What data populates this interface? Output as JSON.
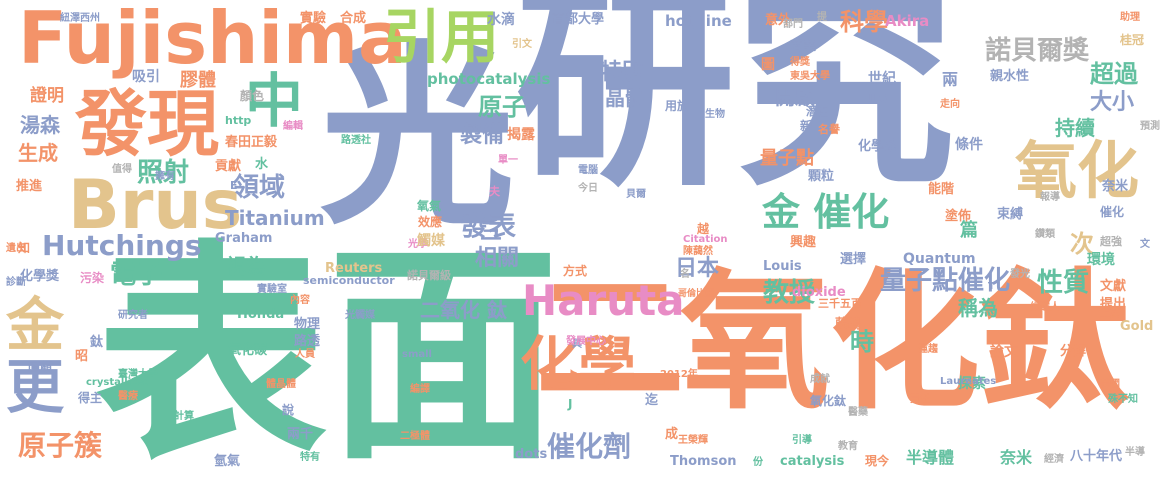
{
  "palette": {
    "blue": "#8c9dc9",
    "green": "#63c0a0",
    "orange": "#f39369",
    "pink": "#e88cc5",
    "tan": "#e3c48d",
    "lime": "#a7d562",
    "gray": "#b3b3b3"
  },
  "words": [
    {
      "text": "研究",
      "color": "blue"
    },
    {
      "text": "光",
      "color": "blue"
    },
    {
      "text": "表面",
      "color": "green"
    },
    {
      "text": "氧化鈦",
      "color": "orange"
    },
    {
      "text": "二",
      "color": "orange"
    },
    {
      "text": "Fujishima",
      "color": "orange"
    },
    {
      "text": "發現",
      "color": "orange"
    },
    {
      "text": "Brus",
      "color": "tan"
    },
    {
      "text": "引用",
      "color": "lime"
    },
    {
      "text": "中",
      "color": "green"
    },
    {
      "text": "氧化",
      "color": "tan"
    },
    {
      "text": "Haruta",
      "color": "pink"
    },
    {
      "text": "化學",
      "color": "orange"
    },
    {
      "text": "金",
      "color": "tan"
    },
    {
      "text": "更",
      "color": "blue"
    },
    {
      "text": "Hutchings",
      "color": "blue"
    },
    {
      "text": "金 催化",
      "color": "green"
    },
    {
      "text": "諾貝爾獎",
      "color": "gray"
    },
    {
      "text": "原子簇",
      "color": "orange"
    },
    {
      "text": "催化劑",
      "color": "blue"
    },
    {
      "text": "量子點催化",
      "color": "blue"
    },
    {
      "text": "性質",
      "color": "green"
    },
    {
      "text": "教授",
      "color": "green"
    },
    {
      "text": "電子",
      "color": "green"
    },
    {
      "text": "照射",
      "color": "green"
    },
    {
      "text": "領域",
      "color": "blue"
    },
    {
      "text": "發表",
      "color": "blue"
    },
    {
      "text": "科學",
      "color": "orange"
    },
    {
      "text": "超過",
      "color": "green"
    },
    {
      "text": "大小",
      "color": "blue"
    },
    {
      "text": "原子",
      "color": "green"
    },
    {
      "text": "特別",
      "color": "blue"
    },
    {
      "text": "晶體",
      "color": "blue"
    },
    {
      "text": "製備",
      "color": "blue"
    },
    {
      "text": "湯森",
      "color": "blue"
    },
    {
      "text": "生成",
      "color": "orange"
    },
    {
      "text": "持續",
      "color": "green"
    },
    {
      "text": "開啟",
      "color": "blue"
    },
    {
      "text": "量子點",
      "color": "orange"
    },
    {
      "text": "日本",
      "color": "blue"
    },
    {
      "text": "相關",
      "color": "blue"
    },
    {
      "text": "三",
      "color": "blue"
    },
    {
      "text": "Titanium",
      "color": "blue"
    },
    {
      "text": "二氧化 鈦",
      "color": "blue"
    },
    {
      "text": "視為",
      "color": "green"
    },
    {
      "text": "稱為",
      "color": "green"
    },
    {
      "text": "次",
      "color": "tan"
    },
    {
      "text": "時",
      "color": "green"
    },
    {
      "text": "膠體",
      "color": "orange"
    },
    {
      "text": "證明",
      "color": "orange"
    },
    {
      "text": "吸引",
      "color": "blue"
    },
    {
      "text": "photocatalysis",
      "color": "green"
    },
    {
      "text": "hot_line",
      "color": "blue"
    },
    {
      "text": "Akira",
      "color": "pink"
    },
    {
      "text": "水滴",
      "color": "blue"
    },
    {
      "text": "首都大學",
      "color": "blue"
    },
    {
      "text": "實驗",
      "color": "orange"
    },
    {
      "text": "合成",
      "color": "orange"
    },
    {
      "text": "紐澤西州",
      "color": "blue"
    },
    {
      "text": "意外",
      "color": "orange"
    },
    {
      "text": "商業",
      "color": "blue"
    },
    {
      "text": "世紀",
      "color": "blue"
    },
    {
      "text": "兩",
      "color": "blue"
    },
    {
      "text": "親水性",
      "color": "blue"
    },
    {
      "text": "UV",
      "color": "blue"
    },
    {
      "text": "條件",
      "color": "blue"
    },
    {
      "text": "能階",
      "color": "orange"
    },
    {
      "text": "塗佈",
      "color": "orange"
    },
    {
      "text": "束縛",
      "color": "blue"
    },
    {
      "text": "催化",
      "color": "blue"
    },
    {
      "text": "篇",
      "color": "green"
    },
    {
      "text": "興趣",
      "color": "orange"
    },
    {
      "text": "選擇",
      "color": "blue"
    },
    {
      "text": "Quantum",
      "color": "blue"
    },
    {
      "text": "Louis",
      "color": "blue"
    },
    {
      "text": "dioxide",
      "color": "pink"
    },
    {
      "text": "環境",
      "color": "green"
    },
    {
      "text": "文獻",
      "color": "orange"
    },
    {
      "text": "提出",
      "color": "orange"
    },
    {
      "text": "Gold",
      "color": "tan"
    },
    {
      "text": "超強",
      "color": "gray"
    },
    {
      "text": "化學系",
      "color": "blue"
    },
    {
      "text": "顆粒",
      "color": "blue"
    },
    {
      "text": "潛在",
      "color": "blue"
    },
    {
      "text": "新",
      "color": "blue"
    },
    {
      "text": "名譽",
      "color": "orange"
    },
    {
      "text": "揭露",
      "color": "orange"
    },
    {
      "text": "用於",
      "color": "blue"
    },
    {
      "text": "春田正毅",
      "color": "orange"
    },
    {
      "text": "http",
      "color": "green"
    },
    {
      "text": "貢獻",
      "color": "orange"
    },
    {
      "text": "水",
      "color": "green"
    },
    {
      "text": "推進",
      "color": "orange"
    },
    {
      "text": "化學獎",
      "color": "blue"
    },
    {
      "text": "污染",
      "color": "pink"
    },
    {
      "text": "Graham",
      "color": "blue"
    },
    {
      "text": "Reuters",
      "color": "tan"
    },
    {
      "text": "semiconductor",
      "color": "blue"
    },
    {
      "text": "諾貝爾級",
      "color": "gray"
    },
    {
      "text": "方式",
      "color": "orange"
    },
    {
      "text": "Honda",
      "color": "green"
    },
    {
      "text": "物理",
      "color": "blue"
    },
    {
      "text": "氧化碳",
      "color": "green"
    },
    {
      "text": "路透",
      "color": "blue"
    },
    {
      "text": "藤嶋",
      "color": "orange"
    },
    {
      "text": "三千五百",
      "color": "orange"
    },
    {
      "text": "哥倫比亞",
      "color": "orange"
    },
    {
      "text": "論文",
      "color": "orange"
    },
    {
      "text": "分解",
      "color": "orange"
    },
    {
      "text": "探索",
      "color": "green"
    },
    {
      "text": "氧化鈦",
      "color": "blue"
    },
    {
      "text": "半導體",
      "color": "green"
    },
    {
      "text": "奈米",
      "color": "green"
    },
    {
      "text": "八十年代",
      "color": "blue"
    },
    {
      "text": "現今",
      "color": "orange"
    },
    {
      "text": "catalysis",
      "color": "green"
    },
    {
      "text": "Thomson",
      "color": "blue"
    },
    {
      "text": "dots",
      "color": "blue"
    },
    {
      "text": "兩千",
      "color": "blue"
    },
    {
      "text": "說",
      "color": "blue"
    },
    {
      "text": "得主",
      "color": "blue"
    },
    {
      "text": "回顧",
      "color": "blue"
    },
    {
      "text": "氫氣",
      "color": "blue"
    },
    {
      "text": "crystallites",
      "color": "green"
    },
    {
      "text": "small",
      "color": "blue"
    },
    {
      "text": "成",
      "color": "orange"
    },
    {
      "text": "迄",
      "color": "blue"
    },
    {
      "text": "具",
      "color": "blue"
    },
    {
      "text": "奈米",
      "color": "blue"
    },
    {
      "text": "知",
      "color": "orange"
    },
    {
      "text": "鈦",
      "color": "blue"
    },
    {
      "text": "昭",
      "color": "orange"
    },
    {
      "text": "夫",
      "color": "pink"
    },
    {
      "text": "越",
      "color": "orange"
    },
    {
      "text": "光學",
      "color": "pink"
    },
    {
      "text": "光觸媒",
      "color": "blue"
    },
    {
      "text": "觸媒",
      "color": "tan"
    },
    {
      "text": "效應",
      "color": "orange"
    },
    {
      "text": "氧氣",
      "color": "green"
    },
    {
      "text": "研究者",
      "color": "blue"
    },
    {
      "text": "實驗室",
      "color": "blue"
    },
    {
      "text": "內容",
      "color": "orange"
    },
    {
      "text": "臺灣大學",
      "color": "green"
    },
    {
      "text": "人員",
      "color": "orange"
    },
    {
      "text": "醫療",
      "color": "orange"
    },
    {
      "text": "計算",
      "color": "green"
    },
    {
      "text": "特有",
      "color": "green"
    },
    {
      "text": "編譯",
      "color": "orange"
    },
    {
      "text": "二極體",
      "color": "orange"
    },
    {
      "text": "教育",
      "color": "gray"
    },
    {
      "text": "經濟",
      "color": "gray"
    },
    {
      "text": "醫藥",
      "color": "gray"
    },
    {
      "text": "候選人",
      "color": "orange"
    },
    {
      "text": "上萬",
      "color": "orange"
    },
    {
      "text": "美國",
      "color": "orange"
    },
    {
      "text": "殊不知",
      "color": "green"
    },
    {
      "text": "預測",
      "color": "gray"
    },
    {
      "text": "報導",
      "color": "gray"
    },
    {
      "text": "鑽類",
      "color": "gray"
    },
    {
      "text": "助理",
      "color": "orange"
    },
    {
      "text": "桂冠",
      "color": "tan"
    },
    {
      "text": "部門",
      "color": "gray"
    },
    {
      "text": "提",
      "color": "gray"
    },
    {
      "text": "得獎",
      "color": "orange"
    },
    {
      "text": "東吳大學",
      "color": "orange"
    },
    {
      "text": "生物",
      "color": "blue"
    },
    {
      "text": "電腦",
      "color": "blue"
    },
    {
      "text": "今日",
      "color": "gray"
    },
    {
      "text": "貝爾",
      "color": "blue"
    },
    {
      "text": "Citation",
      "color": "pink"
    },
    {
      "text": "陳藹然",
      "color": "orange"
    },
    {
      "text": "單一",
      "color": "pink"
    },
    {
      "text": "發展中心",
      "color": "pink"
    },
    {
      "text": "2012年",
      "color": "orange"
    },
    {
      "text": "王榮輝",
      "color": "orange"
    },
    {
      "text": "引導",
      "color": "green"
    },
    {
      "text": "成就",
      "color": "gray"
    },
    {
      "text": "責任",
      "color": "orange"
    },
    {
      "text": "運趨",
      "color": "orange"
    },
    {
      "text": "Laureates",
      "color": "blue"
    },
    {
      "text": "走向",
      "color": "orange"
    },
    {
      "text": "顏色",
      "color": "gray"
    },
    {
      "text": "值得",
      "color": "gray"
    },
    {
      "text": "擁有",
      "color": "blue"
    },
    {
      "text": "編輯",
      "color": "pink"
    },
    {
      "text": "路透社",
      "color": "green"
    },
    {
      "text": "遺出",
      "color": "orange"
    },
    {
      "text": "診斷",
      "color": "blue"
    },
    {
      "text": "引文",
      "color": "tan"
    },
    {
      "text": "圖",
      "color": "orange"
    },
    {
      "text": "體晶體",
      "color": "orange"
    },
    {
      "text": "份",
      "color": "green"
    },
    {
      "text": "發光",
      "color": "gray"
    },
    {
      "text": "文",
      "color": "blue"
    },
    {
      "text": "T",
      "color": "blue"
    },
    {
      "text": "J",
      "color": "green"
    },
    {
      "text": "E",
      "color": "blue"
    },
    {
      "text": "半導",
      "color": "gray"
    },
    {
      "text": "名",
      "color": "gray"
    }
  ]
}
